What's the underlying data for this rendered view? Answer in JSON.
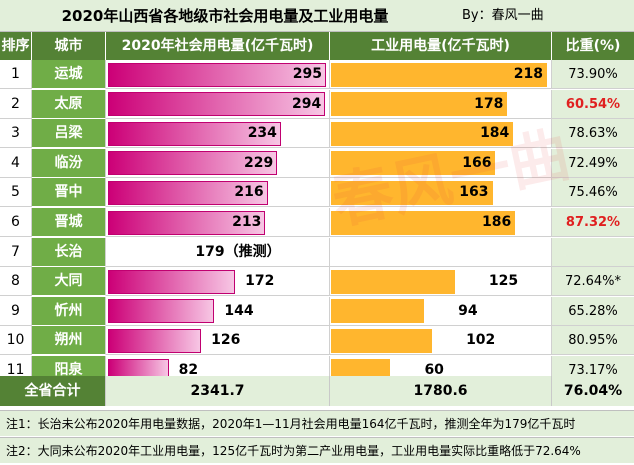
{
  "title": "2020年山西省各地级市社会用电量及工业用电量",
  "author": "By：春风一曲",
  "watermark": "春风一曲",
  "headers": {
    "rank": "排序",
    "city": "城市",
    "social": "2020年社会用电量(亿千瓦时)",
    "industrial": "工业用电量(亿千瓦时)",
    "ratio": "比重(%)"
  },
  "chart_data": {
    "type": "table",
    "title": "2020年山西省各地级市社会用电量及工业用电量",
    "rows": [
      {
        "rank": "1",
        "city": "运城",
        "social": 295,
        "social_label": "295",
        "industrial": 218,
        "industrial_label": "218",
        "ratio": "73.90%",
        "highlight": false
      },
      {
        "rank": "2",
        "city": "太原",
        "social": 294,
        "social_label": "294",
        "industrial": 178,
        "industrial_label": "178",
        "ratio": "60.54%",
        "highlight": true
      },
      {
        "rank": "3",
        "city": "吕梁",
        "social": 234,
        "social_label": "234",
        "industrial": 184,
        "industrial_label": "184",
        "ratio": "78.63%",
        "highlight": false
      },
      {
        "rank": "4",
        "city": "临汾",
        "social": 229,
        "social_label": "229",
        "industrial": 166,
        "industrial_label": "166",
        "ratio": "72.49%",
        "highlight": false
      },
      {
        "rank": "5",
        "city": "晋中",
        "social": 216,
        "social_label": "216",
        "industrial": 163,
        "industrial_label": "163",
        "ratio": "75.46%",
        "highlight": false
      },
      {
        "rank": "6",
        "city": "晋城",
        "social": 213,
        "social_label": "213",
        "industrial": 186,
        "industrial_label": "186",
        "ratio": "87.32%",
        "highlight": true
      },
      {
        "rank": "7",
        "city": "长治",
        "social": null,
        "social_label": "179（推测）",
        "industrial": null,
        "industrial_label": "",
        "ratio": "",
        "highlight": false
      },
      {
        "rank": "8",
        "city": "大同",
        "social": 172,
        "social_label": "172",
        "industrial": 125,
        "industrial_label": "125",
        "ratio": "72.64%*",
        "highlight": false
      },
      {
        "rank": "9",
        "city": "忻州",
        "social": 144,
        "social_label": "144",
        "industrial": 94,
        "industrial_label": "94",
        "ratio": "65.28%",
        "highlight": false
      },
      {
        "rank": "10",
        "city": "朔州",
        "social": 126,
        "social_label": "126",
        "industrial": 102,
        "industrial_label": "102",
        "ratio": "80.95%",
        "highlight": false
      },
      {
        "rank": "11",
        "city": "阳泉",
        "social": 82,
        "social_label": "82",
        "industrial": 60,
        "industrial_label": "60",
        "ratio": "73.17%",
        "highlight": false
      }
    ],
    "total": {
      "label": "全省合计",
      "social": "2341.7",
      "industrial": "1780.6",
      "ratio": "76.04%"
    },
    "social_max": 295,
    "industrial_max": 218
  },
  "colors": {
    "social_bar": "#cc0077",
    "industrial_bar": "#ffb62e",
    "header": "#548235",
    "city": "#70ad47",
    "highlight_text": "#e02020"
  },
  "notes": [
    "注1：长治未公布2020年用电量数据，2020年1—11月社会用电量164亿千瓦时，推测全年为179亿千瓦时",
    "注2：大同未公布2020年工业用电量，125亿千瓦时为第二产业用电量，工业用电量实际比重略低于72.64%"
  ]
}
